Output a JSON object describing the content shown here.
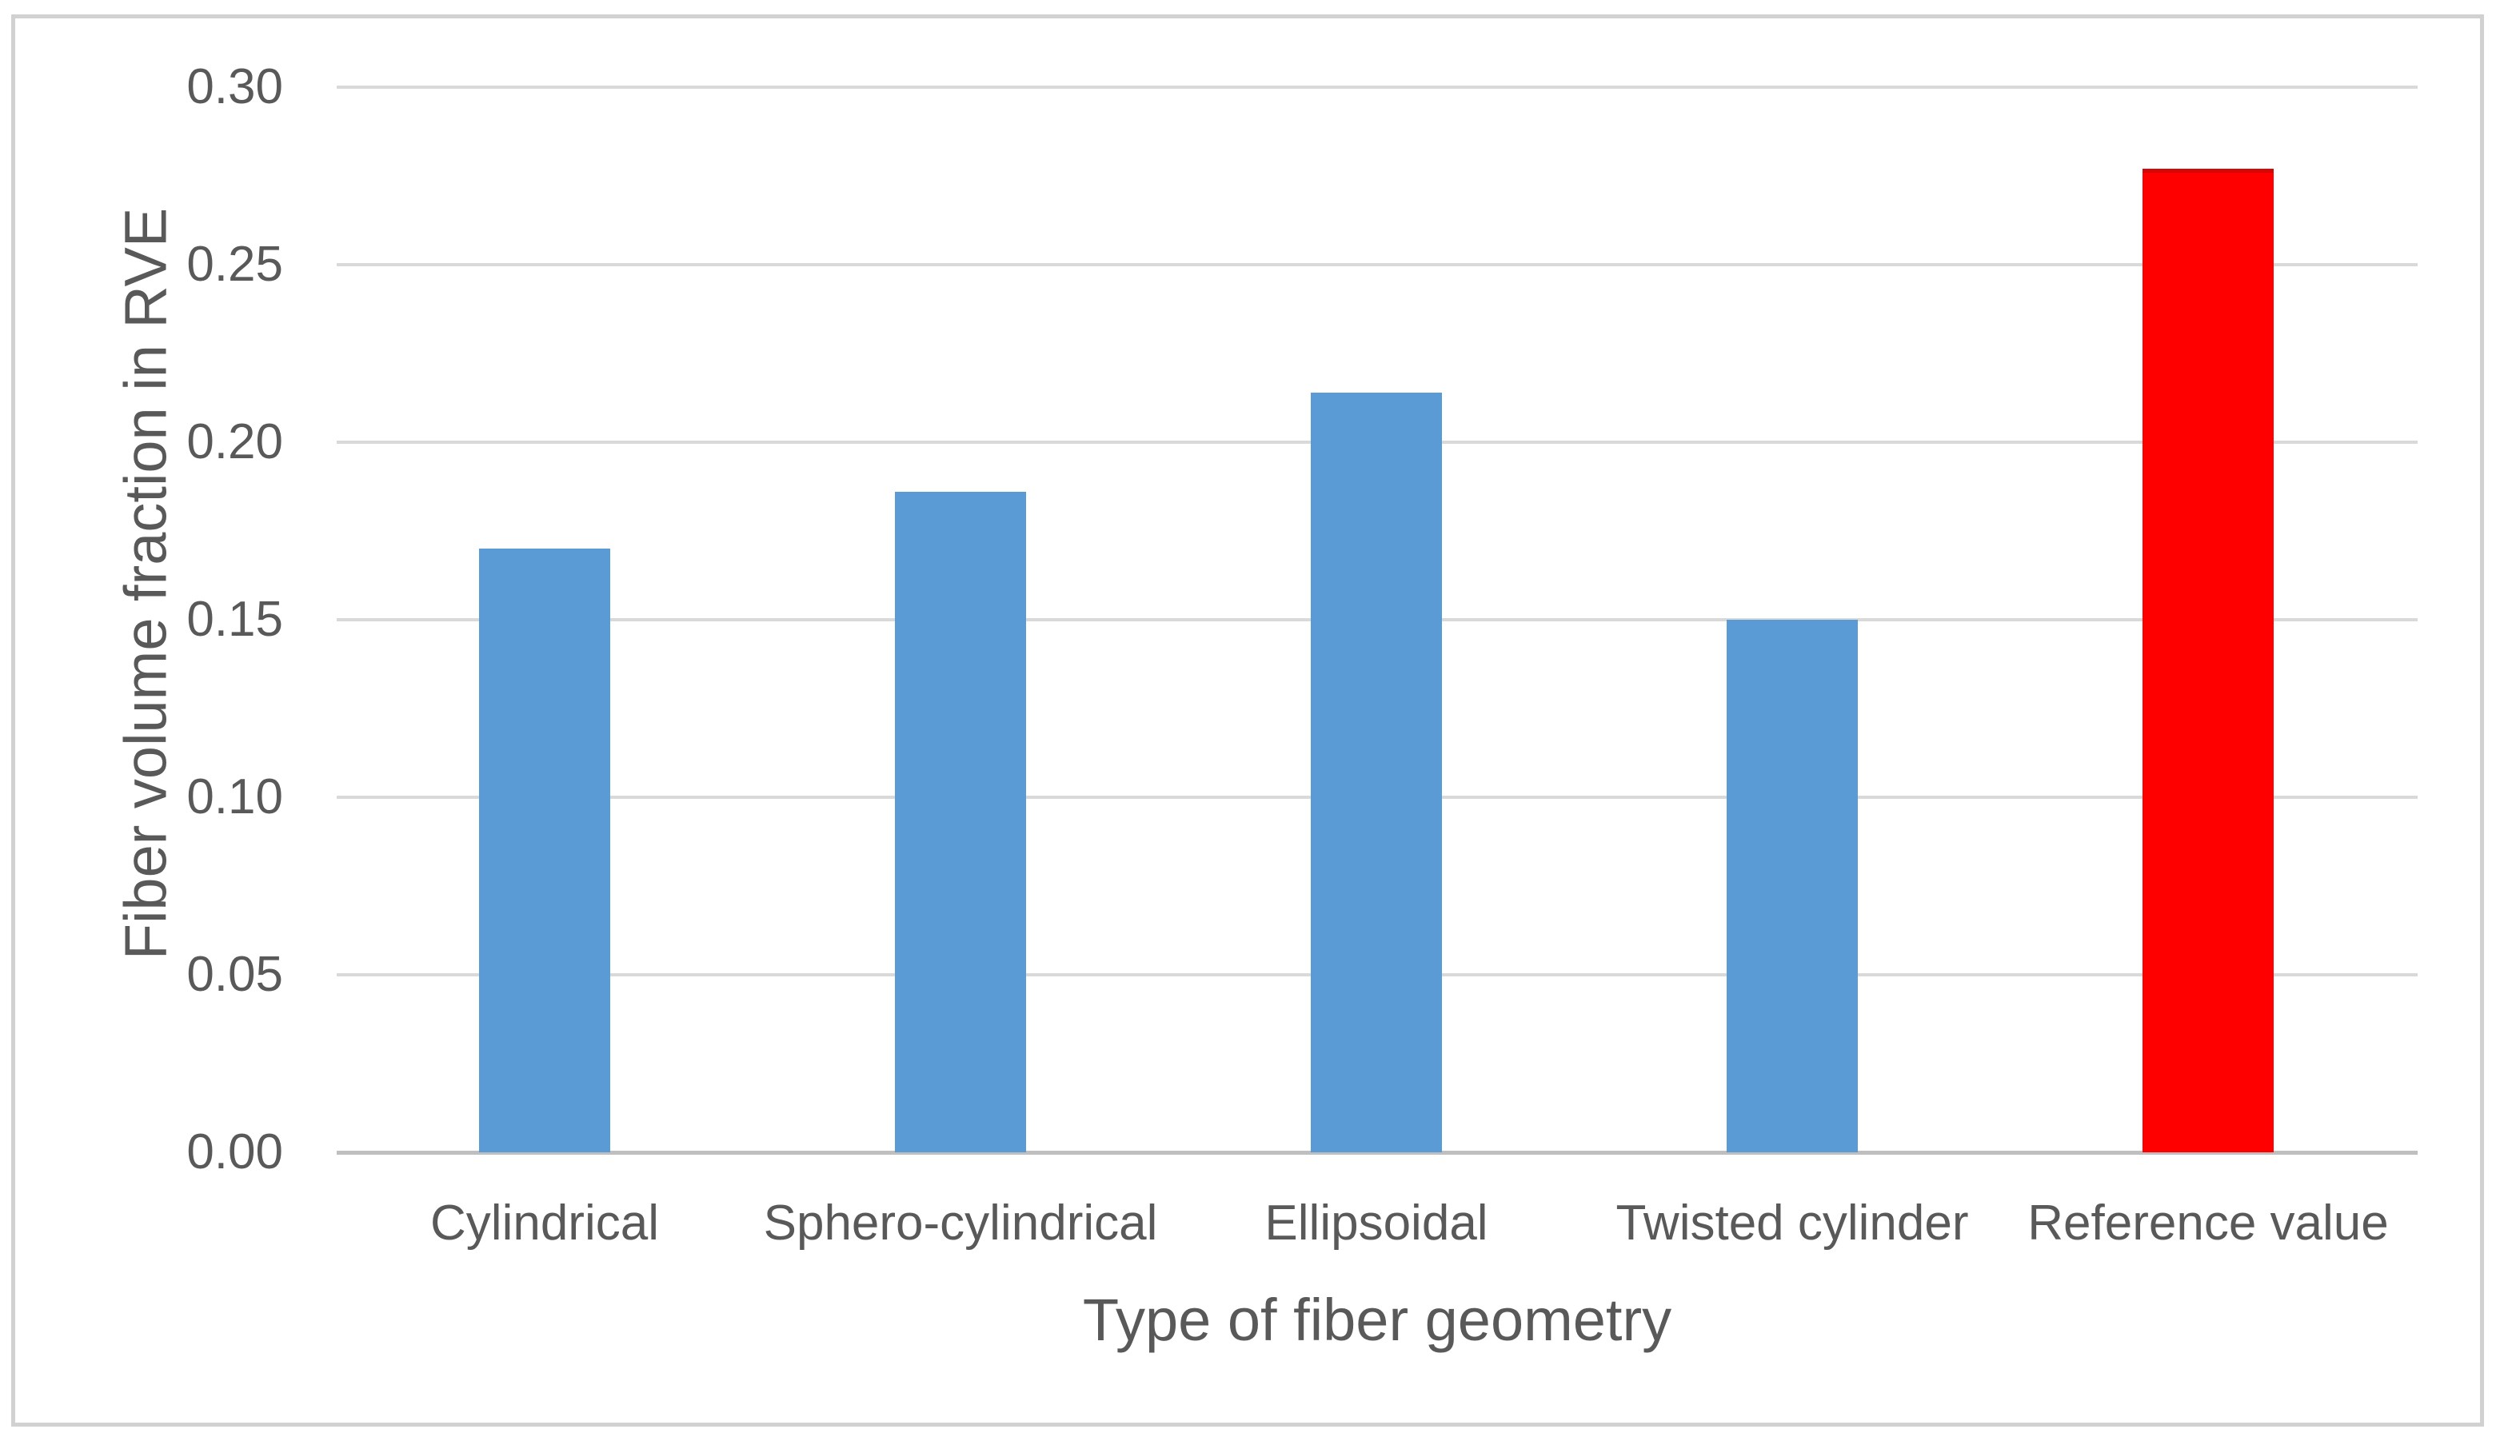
{
  "figure": {
    "background_color": "#FFFFFF",
    "border_color": "#D1D1D1"
  },
  "chart_data": {
    "type": "bar",
    "title": "",
    "categories": [
      "Cylindrical",
      "Sphero-cylindrical",
      "Ellipsoidal",
      "Twisted cylinder",
      "Reference value"
    ],
    "values": [
      0.17,
      0.186,
      0.214,
      0.15,
      0.277
    ],
    "bar_colors": [
      "#5B9BD5",
      "#5B9BD5",
      "#5B9BD5",
      "#5B9BD5",
      "#FF0000"
    ],
    "highlighted_category": "Reference value",
    "xlabel": "Type of fiber geometry",
    "ylabel": "Fiber volume fraction in RVE",
    "ylim": [
      0,
      0.3
    ],
    "yticks": [
      0.0,
      0.05,
      0.1,
      0.15,
      0.2,
      0.25,
      0.3
    ],
    "ytick_labels": [
      "0.00",
      "0.05",
      "0.10",
      "0.15",
      "0.20",
      "0.25",
      "0.30"
    ],
    "grid": true,
    "legend": false,
    "gridline_color": "#D9D9D9",
    "axis_line_color": "#BFBFBF",
    "text_color": "#595959",
    "default_bar_color": "#5B9BD5",
    "highlight_bar_color": "#FF0000"
  }
}
